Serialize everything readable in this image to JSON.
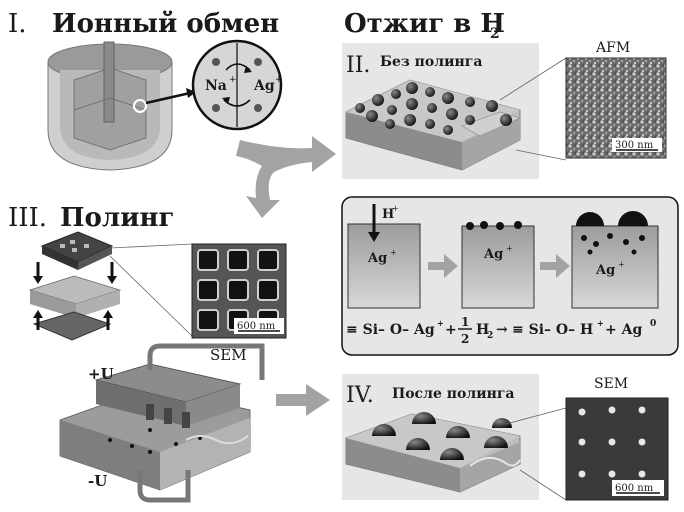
{
  "sections": {
    "s1": {
      "numeral": "I.",
      "title": "Ионный обмен",
      "ion_na": "Na",
      "ion_ag": "Ag",
      "sup": "+"
    },
    "annealing": {
      "title": "Отжиг в H",
      "sub": "2"
    },
    "s2": {
      "numeral": "II.",
      "title": "Без полинга",
      "afm_label": "AFM",
      "scale": "300 nm"
    },
    "s3": {
      "numeral": "III.",
      "title": "Полинг",
      "sem_label": "SEM",
      "scale": "600 nm",
      "plus_u": "+U",
      "minus_u": "-U"
    },
    "mechanism": {
      "h_label": "H",
      "h_sup": "+",
      "ag_label": "Ag",
      "ag_sup": "+",
      "eq_left": "≡ Si– O– Ag",
      "eq_plus1": "+",
      "frac_num": "1",
      "frac_den": "2",
      "h2": "H",
      "h2_sub": "2",
      "arrow": "→",
      "eq_right": "≡ Si– O– H",
      "eq_plus2": "+ Ag",
      "ag0": "0"
    },
    "s4": {
      "numeral": "IV.",
      "title": "После полинга",
      "sem_label": "SEM",
      "scale": "600 nm"
    }
  },
  "colors": {
    "panel_bg": "#e6e6e6",
    "glass_top": "#b8b8b8",
    "glass_side": "#8a8a8a",
    "arrow_gray": "#a3a3a3",
    "particle": "#222222",
    "box_fill": "#a8a8a8"
  }
}
